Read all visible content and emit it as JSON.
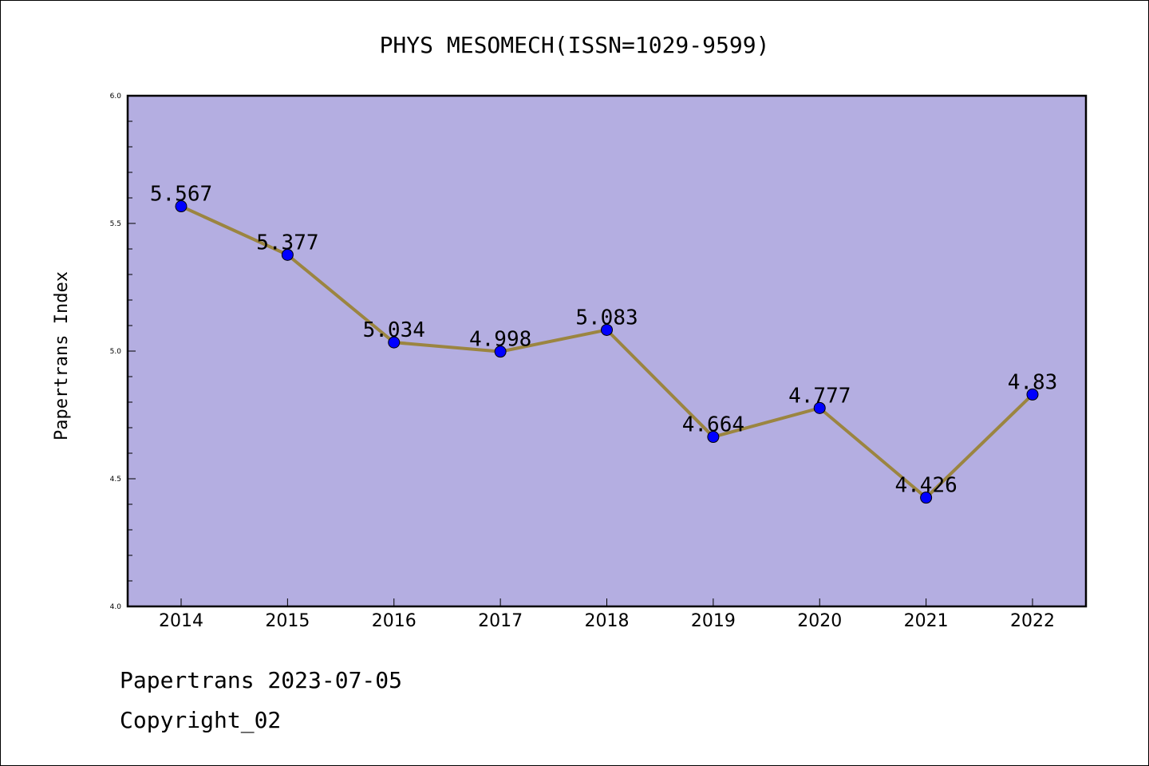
{
  "chart_data": {
    "type": "line",
    "title": "PHYS MESOMECH(ISSN=1029-9599)",
    "xlabel": "",
    "ylabel": "Papertrans Index",
    "categories": [
      "2014",
      "2015",
      "2016",
      "2017",
      "2018",
      "2019",
      "2020",
      "2021",
      "2022"
    ],
    "values": [
      5.567,
      5.377,
      5.034,
      4.998,
      5.083,
      4.664,
      4.777,
      4.426,
      4.83
    ],
    "data_labels": [
      "5.567",
      "5.377",
      "5.034",
      "4.998",
      "5.083",
      "4.664",
      "4.777",
      "4.426",
      "4.83"
    ],
    "ylim": [
      4.0,
      6.0
    ],
    "yticks": [
      4.0,
      4.5,
      5.0,
      5.5,
      6.0
    ],
    "ytick_labels": [
      "4.0",
      "4.5",
      "5.0",
      "5.5",
      "6.0"
    ],
    "grid": false,
    "legend": "none",
    "colors": {
      "plot_background": "#b4aee1",
      "line": "#9b8540",
      "marker": "#0000ff",
      "frame": "#000000"
    }
  },
  "footer": {
    "line1": "Papertrans 2023-07-05",
    "line2": "Copyright_02"
  }
}
